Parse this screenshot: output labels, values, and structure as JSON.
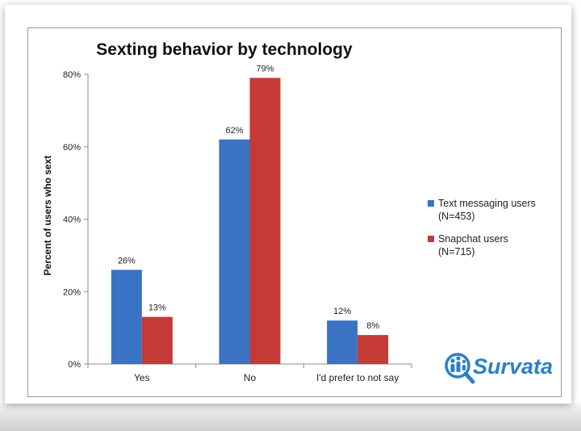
{
  "chart_data": {
    "type": "bar",
    "title": "Sexting behavior by technology",
    "ylabel": "Percent of users  who sext",
    "xlabel": "",
    "categories": [
      "Yes",
      "No",
      "I'd prefer to not say"
    ],
    "series": [
      {
        "name": "Text messaging users",
        "name_line2": "(N=453)",
        "color": "#3b73c4",
        "values": [
          26,
          62,
          12
        ],
        "labels": [
          "26%",
          "62%",
          "12%"
        ]
      },
      {
        "name": "Snapchat users",
        "name_line2": "(N=715)",
        "color": "#c33a37",
        "values": [
          13,
          79,
          8
        ],
        "labels": [
          "13%",
          "79%",
          "8%"
        ]
      }
    ],
    "ylim": [
      0,
      80
    ],
    "yticks": [
      0,
      20,
      40,
      60,
      80
    ],
    "ytick_labels": [
      "0%",
      "20%",
      "40%",
      "60%",
      "80%"
    ],
    "grid": false,
    "legend_position": "right"
  },
  "logo": {
    "text": "Survata",
    "icon": "magnifier-people-icon",
    "color": "#2c7fc6"
  }
}
